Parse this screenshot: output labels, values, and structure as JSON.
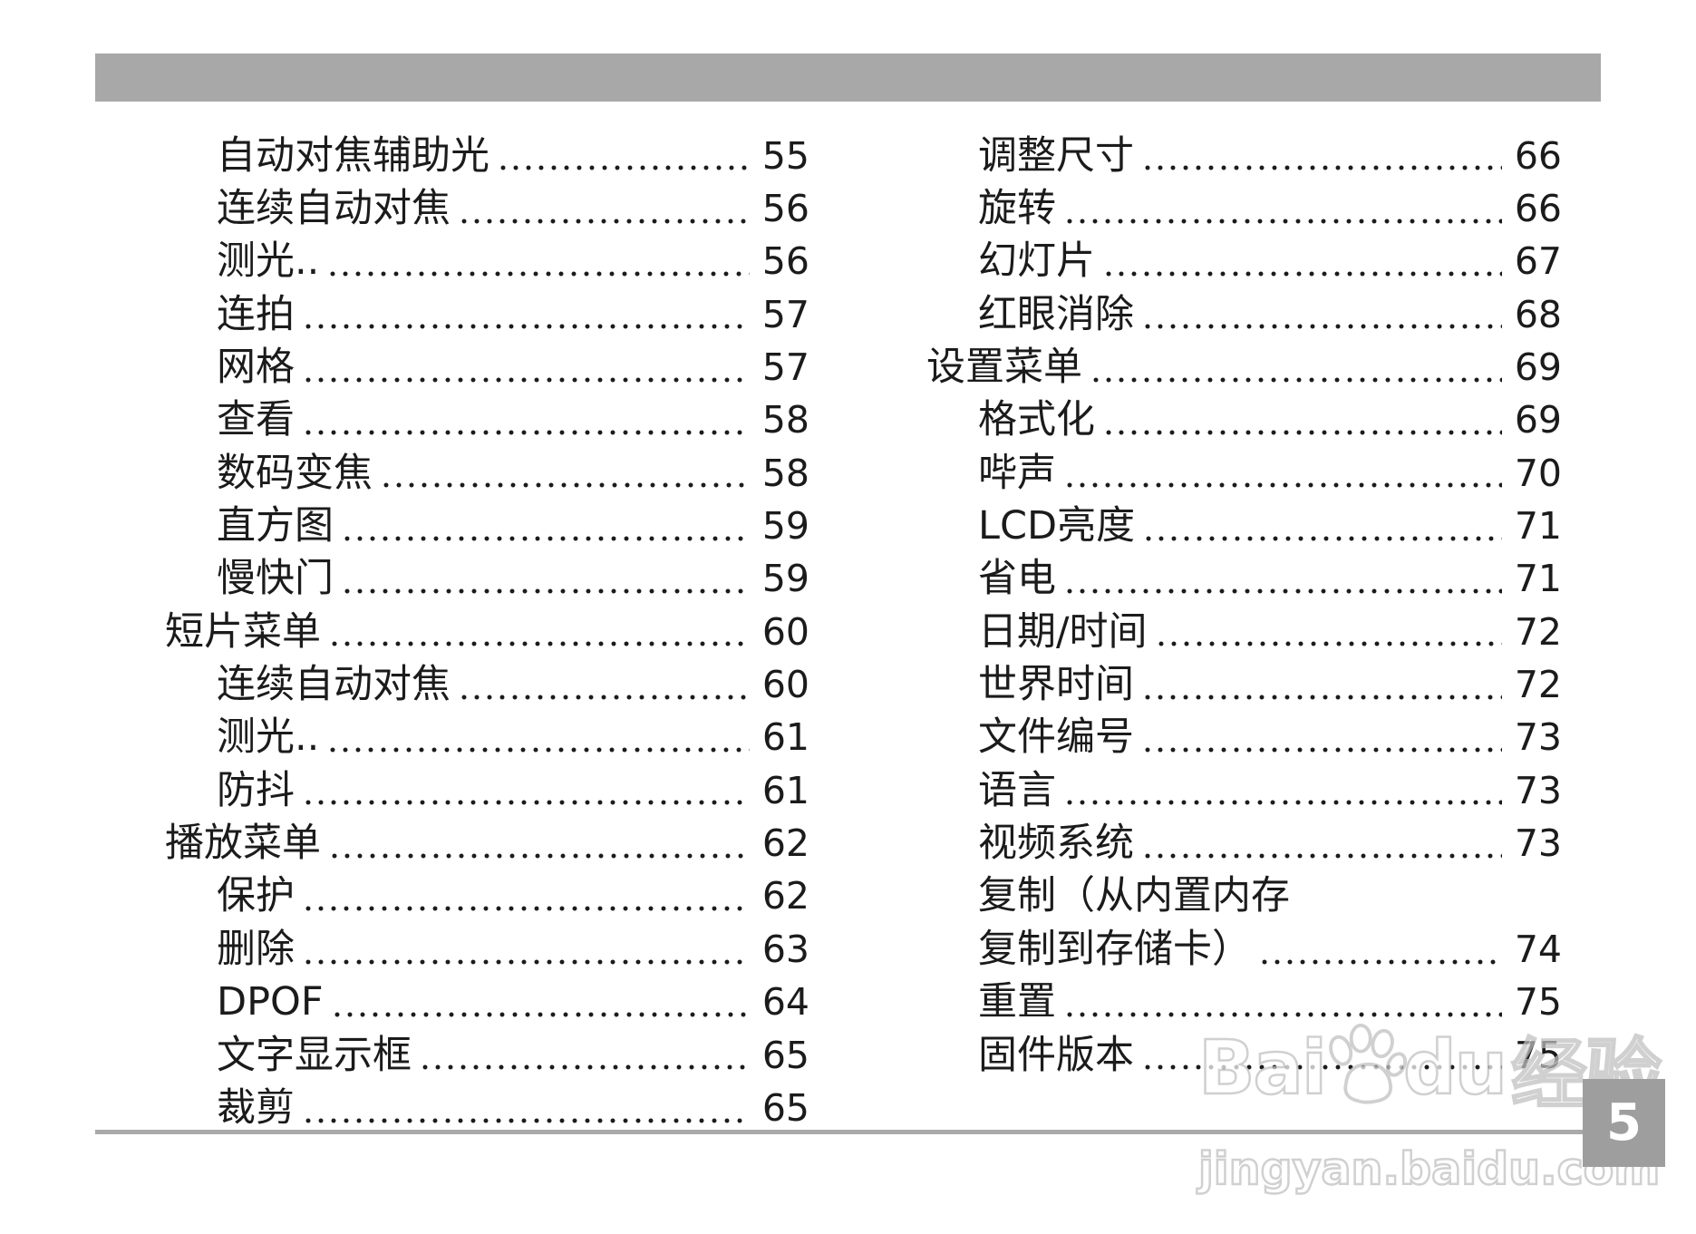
{
  "page": {
    "number": "5"
  },
  "colors": {
    "bar": "#a8a8a8",
    "rule": "#a9a9a9",
    "page_box": "#9e9e9e",
    "text": "#1b1b1b",
    "watermark_outline": "#bfbfbf"
  },
  "watermark": {
    "line1_pre": "Bai",
    "line1_post": "du",
    "line1_cjk": "经验",
    "line2": "jingyan.baidu.com",
    "paw_icon": "baidu-paw-icon"
  },
  "toc": {
    "left": [
      {
        "label": "自动对焦辅助光",
        "page": "55",
        "level": 2
      },
      {
        "label": "连续自动对焦",
        "page": "56",
        "level": 2
      },
      {
        "label": "测光..",
        "page": "56",
        "level": 2
      },
      {
        "label": "连拍",
        "page": "57",
        "level": 2
      },
      {
        "label": "网格",
        "page": "57",
        "level": 2
      },
      {
        "label": "查看",
        "page": "58",
        "level": 2
      },
      {
        "label": "数码变焦",
        "page": "58",
        "level": 2
      },
      {
        "label": "直方图",
        "page": "59",
        "level": 2
      },
      {
        "label": "慢快门",
        "page": "59",
        "level": 2
      },
      {
        "label": "短片菜单",
        "page": "60",
        "level": 1
      },
      {
        "label": "连续自动对焦",
        "page": "60",
        "level": 2
      },
      {
        "label": "测光..",
        "page": "61",
        "level": 2
      },
      {
        "label": "防抖",
        "page": "61",
        "level": 2
      },
      {
        "label": "播放菜单",
        "page": "62",
        "level": 1
      },
      {
        "label": "保护",
        "page": "62",
        "level": 2
      },
      {
        "label": "删除",
        "page": "63",
        "level": 2
      },
      {
        "label": "DPOF",
        "page": "64",
        "level": 2
      },
      {
        "label": "文字显示框",
        "page": "65",
        "level": 2
      },
      {
        "label": "裁剪",
        "page": "65",
        "level": 2
      }
    ],
    "right": [
      {
        "label": "调整尺寸",
        "page": "66",
        "level": 2
      },
      {
        "label": "旋转",
        "page": "66",
        "level": 2
      },
      {
        "label": "幻灯片",
        "page": "67",
        "level": 2
      },
      {
        "label": "红眼消除",
        "page": "68",
        "level": 2
      },
      {
        "label": "设置菜单",
        "page": "69",
        "level": 1
      },
      {
        "label": "格式化",
        "page": "69",
        "level": 2
      },
      {
        "label": "哔声",
        "page": "70",
        "level": 2
      },
      {
        "label": "LCD亮度",
        "page": "71",
        "level": 2
      },
      {
        "label": "省电",
        "page": "71",
        "level": 2
      },
      {
        "label": "日期/时间",
        "page": "72",
        "level": 2
      },
      {
        "label": "世界时间",
        "page": "72",
        "level": 2
      },
      {
        "label": "文件编号",
        "page": "73",
        "level": 2
      },
      {
        "label": "语言",
        "page": "73",
        "level": 2
      },
      {
        "label": "视频系统",
        "page": "73",
        "level": 2
      },
      {
        "label": "复制（从内置内存",
        "page": "",
        "level": 2
      },
      {
        "label": "复制到存储卡）",
        "page": "74",
        "level": 2
      },
      {
        "label": "重置",
        "page": "75",
        "level": 2
      },
      {
        "label": "固件版本",
        "page": "75",
        "level": 2
      }
    ]
  }
}
